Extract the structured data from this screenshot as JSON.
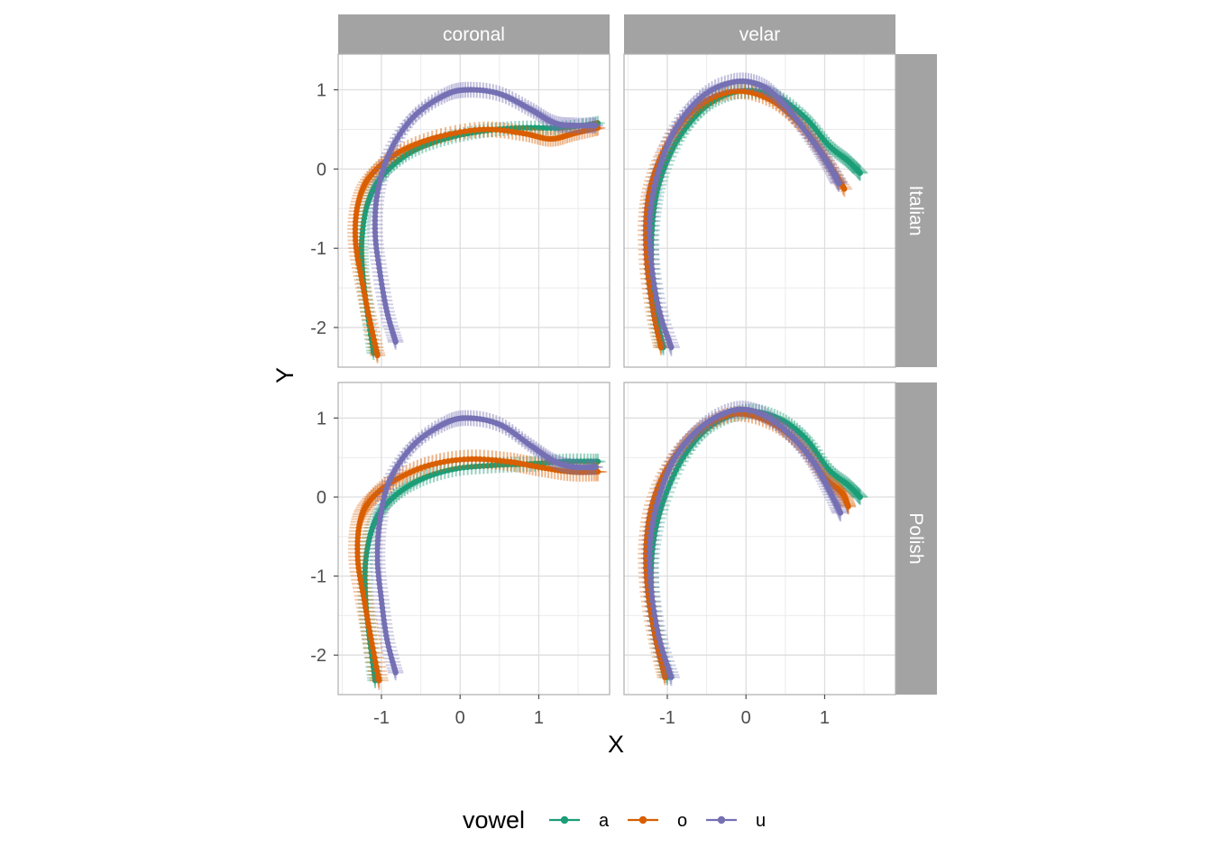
{
  "chart_data": {
    "type": "line",
    "xlabel": "X",
    "ylabel": "Y",
    "columns": [
      "coronal",
      "velar"
    ],
    "rows": [
      "Italian",
      "Polish"
    ],
    "xlim": [
      -1.55,
      1.9
    ],
    "ylim": [
      -2.5,
      1.45
    ],
    "xticks": [
      -1,
      0,
      1
    ],
    "yticks": [
      -2,
      -1,
      0,
      1
    ],
    "grid": true,
    "legend": {
      "title": "vowel",
      "position": "bottom",
      "items": [
        "a",
        "o",
        "u"
      ]
    },
    "colors": {
      "a": "#1b9e77",
      "o": "#d95f02",
      "u": "#7570b3",
      "strip": "#a3a3a3"
    },
    "panels": [
      {
        "column": "coronal",
        "row": "Italian",
        "series": [
          {
            "name": "a",
            "se": 0.09,
            "points": [
              [
                -1.1,
                -2.32
              ],
              [
                -1.18,
                -1.8
              ],
              [
                -1.24,
                -1.3
              ],
              [
                -1.25,
                -0.9
              ],
              [
                -1.18,
                -0.45
              ],
              [
                -1.0,
                -0.1
              ],
              [
                -0.65,
                0.2
              ],
              [
                -0.2,
                0.38
              ],
              [
                0.3,
                0.48
              ],
              [
                0.8,
                0.52
              ],
              [
                1.3,
                0.52
              ],
              [
                1.75,
                0.58
              ]
            ]
          },
          {
            "name": "o",
            "se": 0.1,
            "points": [
              [
                -1.05,
                -2.35
              ],
              [
                -1.15,
                -1.9
              ],
              [
                -1.25,
                -1.4
              ],
              [
                -1.33,
                -0.9
              ],
              [
                -1.3,
                -0.45
              ],
              [
                -1.15,
                -0.1
              ],
              [
                -0.8,
                0.2
              ],
              [
                -0.3,
                0.4
              ],
              [
                0.3,
                0.5
              ],
              [
                0.8,
                0.45
              ],
              [
                1.15,
                0.38
              ],
              [
                1.45,
                0.45
              ],
              [
                1.75,
                0.52
              ]
            ]
          },
          {
            "name": "u",
            "se": 0.1,
            "points": [
              [
                -0.82,
                -2.18
              ],
              [
                -0.93,
                -1.8
              ],
              [
                -1.02,
                -1.3
              ],
              [
                -1.08,
                -0.8
              ],
              [
                -1.05,
                -0.3
              ],
              [
                -0.9,
                0.2
              ],
              [
                -0.6,
                0.65
              ],
              [
                -0.2,
                0.93
              ],
              [
                0.1,
                1.0
              ],
              [
                0.5,
                0.95
              ],
              [
                0.9,
                0.75
              ],
              [
                1.2,
                0.58
              ],
              [
                1.45,
                0.55
              ],
              [
                1.72,
                0.55
              ]
            ]
          }
        ]
      },
      {
        "column": "velar",
        "row": "Italian",
        "series": [
          {
            "name": "a",
            "se": 0.1,
            "points": [
              [
                -1.05,
                -2.25
              ],
              [
                -1.15,
                -1.8
              ],
              [
                -1.2,
                -1.2
              ],
              [
                -1.18,
                -0.6
              ],
              [
                -1.08,
                -0.1
              ],
              [
                -0.85,
                0.4
              ],
              [
                -0.5,
                0.8
              ],
              [
                -0.1,
                0.98
              ],
              [
                0.35,
                0.93
              ],
              [
                0.75,
                0.65
              ],
              [
                1.05,
                0.3
              ],
              [
                1.3,
                0.1
              ],
              [
                1.45,
                -0.05
              ]
            ]
          },
          {
            "name": "o",
            "se": 0.1,
            "points": [
              [
                -1.08,
                -2.25
              ],
              [
                -1.18,
                -1.8
              ],
              [
                -1.26,
                -1.2
              ],
              [
                -1.27,
                -0.6
              ],
              [
                -1.18,
                -0.1
              ],
              [
                -0.95,
                0.4
              ],
              [
                -0.6,
                0.8
              ],
              [
                -0.15,
                0.98
              ],
              [
                0.3,
                0.88
              ],
              [
                0.7,
                0.55
              ],
              [
                1.0,
                0.15
              ],
              [
                1.25,
                -0.25
              ]
            ]
          },
          {
            "name": "u",
            "se": 0.11,
            "points": [
              [
                -0.95,
                -2.25
              ],
              [
                -1.1,
                -1.8
              ],
              [
                -1.2,
                -1.2
              ],
              [
                -1.22,
                -0.6
              ],
              [
                -1.12,
                -0.05
              ],
              [
                -0.9,
                0.5
              ],
              [
                -0.55,
                0.92
              ],
              [
                -0.15,
                1.1
              ],
              [
                0.2,
                1.05
              ],
              [
                0.5,
                0.8
              ],
              [
                0.85,
                0.35
              ],
              [
                1.05,
                0.05
              ],
              [
                1.18,
                -0.18
              ]
            ]
          }
        ]
      },
      {
        "column": "coronal",
        "row": "Polish",
        "series": [
          {
            "name": "a",
            "se": 0.1,
            "points": [
              [
                -1.08,
                -2.32
              ],
              [
                -1.15,
                -1.8
              ],
              [
                -1.2,
                -1.3
              ],
              [
                -1.2,
                -0.8
              ],
              [
                -1.1,
                -0.35
              ],
              [
                -0.9,
                -0.05
              ],
              [
                -0.55,
                0.2
              ],
              [
                -0.1,
                0.35
              ],
              [
                0.4,
                0.4
              ],
              [
                0.9,
                0.42
              ],
              [
                1.35,
                0.45
              ],
              [
                1.75,
                0.45
              ]
            ]
          },
          {
            "name": "o",
            "se": 0.12,
            "points": [
              [
                -1.03,
                -2.32
              ],
              [
                -1.13,
                -1.8
              ],
              [
                -1.22,
                -1.3
              ],
              [
                -1.3,
                -0.8
              ],
              [
                -1.28,
                -0.35
              ],
              [
                -1.15,
                -0.05
              ],
              [
                -0.85,
                0.2
              ],
              [
                -0.4,
                0.4
              ],
              [
                0.1,
                0.48
              ],
              [
                0.6,
                0.45
              ],
              [
                1.0,
                0.38
              ],
              [
                1.4,
                0.32
              ],
              [
                1.75,
                0.32
              ]
            ]
          },
          {
            "name": "u",
            "se": 0.1,
            "points": [
              [
                -0.82,
                -2.22
              ],
              [
                -0.93,
                -1.8
              ],
              [
                -1.0,
                -1.3
              ],
              [
                -1.05,
                -0.8
              ],
              [
                -1.02,
                -0.3
              ],
              [
                -0.9,
                0.2
              ],
              [
                -0.6,
                0.65
              ],
              [
                -0.2,
                0.93
              ],
              [
                0.1,
                1.0
              ],
              [
                0.5,
                0.92
              ],
              [
                0.9,
                0.65
              ],
              [
                1.2,
                0.45
              ],
              [
                1.45,
                0.38
              ],
              [
                1.72,
                0.38
              ]
            ]
          }
        ]
      },
      {
        "column": "velar",
        "row": "Polish",
        "series": [
          {
            "name": "a",
            "se": 0.1,
            "points": [
              [
                -1.0,
                -2.28
              ],
              [
                -1.12,
                -1.8
              ],
              [
                -1.2,
                -1.2
              ],
              [
                -1.18,
                -0.6
              ],
              [
                -1.05,
                -0.05
              ],
              [
                -0.8,
                0.5
              ],
              [
                -0.45,
                0.9
              ],
              [
                0.0,
                1.08
              ],
              [
                0.4,
                1.0
              ],
              [
                0.75,
                0.75
              ],
              [
                1.05,
                0.35
              ],
              [
                1.3,
                0.15
              ],
              [
                1.45,
                0.0
              ]
            ]
          },
          {
            "name": "o",
            "se": 0.1,
            "points": [
              [
                -1.03,
                -2.28
              ],
              [
                -1.15,
                -1.8
              ],
              [
                -1.25,
                -1.2
              ],
              [
                -1.27,
                -0.6
              ],
              [
                -1.18,
                -0.05
              ],
              [
                -0.95,
                0.45
              ],
              [
                -0.6,
                0.85
              ],
              [
                -0.15,
                1.05
              ],
              [
                0.3,
                0.95
              ],
              [
                0.7,
                0.65
              ],
              [
                1.0,
                0.25
              ],
              [
                1.22,
                0.05
              ],
              [
                1.3,
                -0.12
              ]
            ]
          },
          {
            "name": "u",
            "se": 0.11,
            "points": [
              [
                -0.95,
                -2.28
              ],
              [
                -1.1,
                -1.8
              ],
              [
                -1.2,
                -1.2
              ],
              [
                -1.22,
                -0.6
              ],
              [
                -1.12,
                -0.05
              ],
              [
                -0.9,
                0.5
              ],
              [
                -0.55,
                0.9
              ],
              [
                -0.15,
                1.1
              ],
              [
                0.2,
                1.05
              ],
              [
                0.55,
                0.8
              ],
              [
                0.85,
                0.45
              ],
              [
                1.05,
                0.1
              ],
              [
                1.2,
                -0.2
              ]
            ]
          }
        ]
      }
    ]
  }
}
